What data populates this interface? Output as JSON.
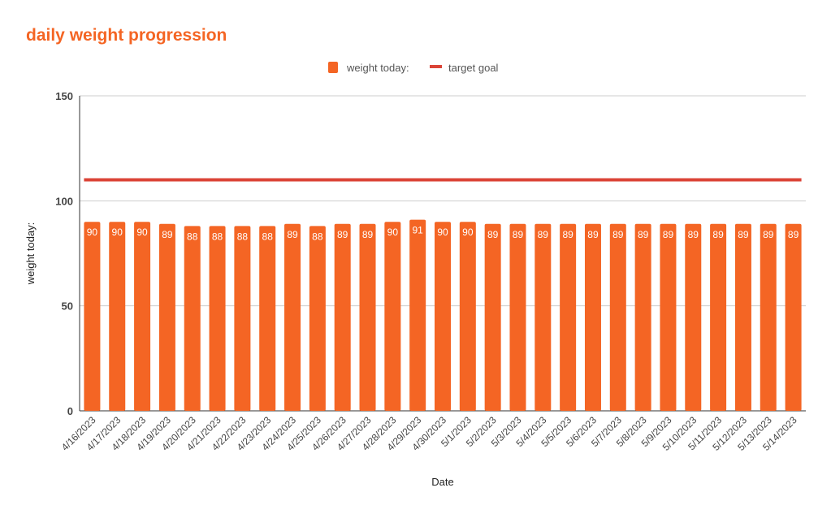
{
  "chart_data": {
    "type": "bar",
    "title": "daily weight progression",
    "xlabel": "Date",
    "ylabel": "weight today:",
    "ylim": [
      0,
      150
    ],
    "yticks": [
      0,
      50,
      100,
      150
    ],
    "grid": true,
    "legend_position": "top",
    "categories": [
      "4/16/2023",
      "4/17/2023",
      "4/18/2023",
      "4/19/2023",
      "4/20/2023",
      "4/21/2023",
      "4/22/2023",
      "4/23/2023",
      "4/24/2023",
      "4/25/2023",
      "4/26/2023",
      "4/27/2023",
      "4/28/2023",
      "4/29/2023",
      "4/30/2023",
      "5/1/2023",
      "5/2/2023",
      "5/3/2023",
      "5/4/2023",
      "5/5/2023",
      "5/6/2023",
      "5/7/2023",
      "5/8/2023",
      "5/9/2023",
      "5/10/2023",
      "5/11/2023",
      "5/12/2023",
      "5/13/2023",
      "5/14/2023"
    ],
    "series": [
      {
        "name": "weight today:",
        "type": "bar",
        "color": "#f46524",
        "values": [
          90,
          90,
          90,
          89,
          88,
          88,
          88,
          88,
          89,
          88,
          89,
          89,
          90,
          91,
          90,
          90,
          89,
          89,
          89,
          89,
          89,
          89,
          89,
          89,
          89,
          89,
          89,
          89,
          89
        ]
      },
      {
        "name": "target goal",
        "type": "line",
        "color": "#db4437",
        "value": 110
      }
    ]
  }
}
